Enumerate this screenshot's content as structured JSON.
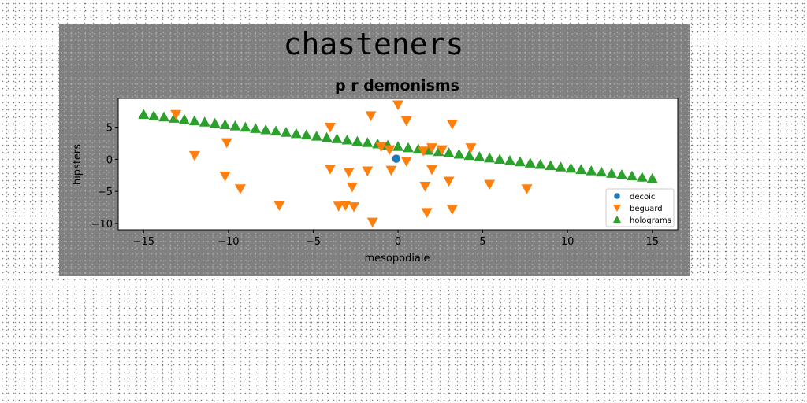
{
  "chart_data": {
    "type": "scatter",
    "suptitle": "chasteners",
    "title": "p r demonisms",
    "xlabel": "mesopodiale",
    "ylabel": "hipsters",
    "xlim": [
      -16.5,
      16.5
    ],
    "ylim": [
      -11,
      9.5
    ],
    "xticks": [
      -15,
      -10,
      -5,
      0,
      5,
      10,
      15
    ],
    "yticks": [
      -10,
      -5,
      0,
      5
    ],
    "legend_position": "lower-right",
    "series": [
      {
        "name": "decoic",
        "marker": "circle",
        "color": "#1f77b4",
        "points": [
          [
            -0.1,
            0.1
          ]
        ]
      },
      {
        "name": "beguard",
        "marker": "triangle-down",
        "color": "#ff7f0e",
        "points": [
          [
            -13.1,
            7.0
          ],
          [
            -12.0,
            0.6
          ],
          [
            -10.1,
            2.6
          ],
          [
            -10.2,
            -2.6
          ],
          [
            -9.3,
            -4.6
          ],
          [
            -7.0,
            -7.2
          ],
          [
            -4.0,
            5.0
          ],
          [
            -4.0,
            -1.5
          ],
          [
            -3.5,
            -7.3
          ],
          [
            -3.1,
            -7.2
          ],
          [
            -2.9,
            -2.0
          ],
          [
            -2.7,
            -4.3
          ],
          [
            -2.6,
            -7.4
          ],
          [
            -1.8,
            -1.8
          ],
          [
            -1.6,
            6.8
          ],
          [
            -1.5,
            -9.8
          ],
          [
            -1.0,
            2.0
          ],
          [
            -0.5,
            1.5
          ],
          [
            -0.4,
            -1.7
          ],
          [
            0.0,
            8.5
          ],
          [
            0.5,
            -0.3
          ],
          [
            0.5,
            6.0
          ],
          [
            1.5,
            1.3
          ],
          [
            1.6,
            -4.2
          ],
          [
            1.7,
            -8.3
          ],
          [
            2.0,
            1.8
          ],
          [
            2.0,
            -1.6
          ],
          [
            2.6,
            1.5
          ],
          [
            3.0,
            -3.4
          ],
          [
            3.2,
            5.5
          ],
          [
            3.2,
            -7.8
          ],
          [
            4.3,
            1.8
          ],
          [
            5.4,
            -3.9
          ],
          [
            7.6,
            -4.6
          ]
        ]
      },
      {
        "name": "holograms",
        "marker": "triangle-up",
        "color": "#2ca02c",
        "line": {
          "x0": -15,
          "y0": 7.0,
          "x1": 15,
          "y1": -3.0,
          "count": 51
        }
      }
    ]
  }
}
